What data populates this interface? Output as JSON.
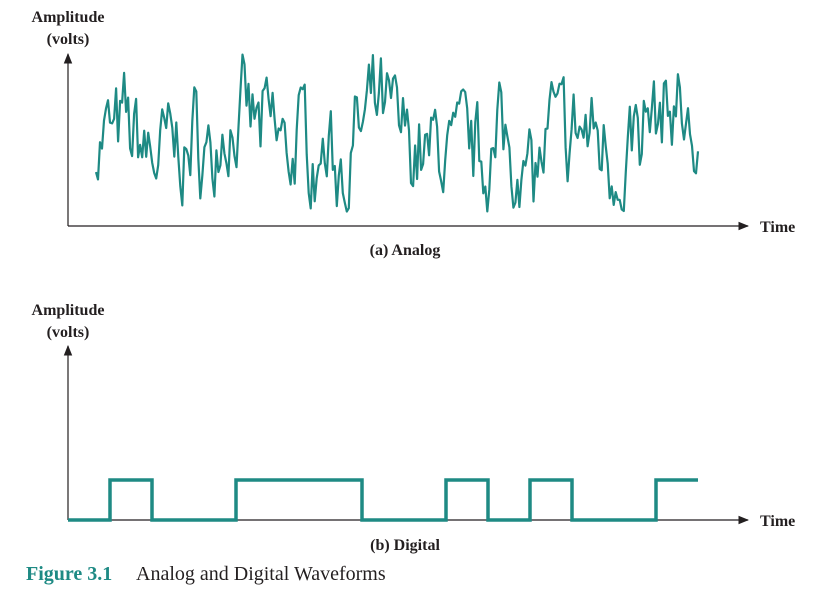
{
  "colors": {
    "wave": "#1e8a84",
    "axis": "#231f20",
    "caption_accent": "#1e8a84"
  },
  "analog": {
    "y_label_line1": "Amplitude",
    "y_label_line2": "(volts)",
    "x_label": "Time",
    "subcaption": "(a) Analog",
    "seed": 7
  },
  "digital": {
    "y_label_line1": "Amplitude",
    "y_label_line2": "(volts)",
    "x_label": "Time",
    "subcaption": "(b) Digital",
    "bits": [
      0,
      1,
      0,
      0,
      1,
      1,
      1,
      0,
      0,
      1,
      0,
      1,
      0,
      0,
      1
    ]
  },
  "figure": {
    "number": "Figure 3.1",
    "title": "Analog and Digital Waveforms"
  }
}
